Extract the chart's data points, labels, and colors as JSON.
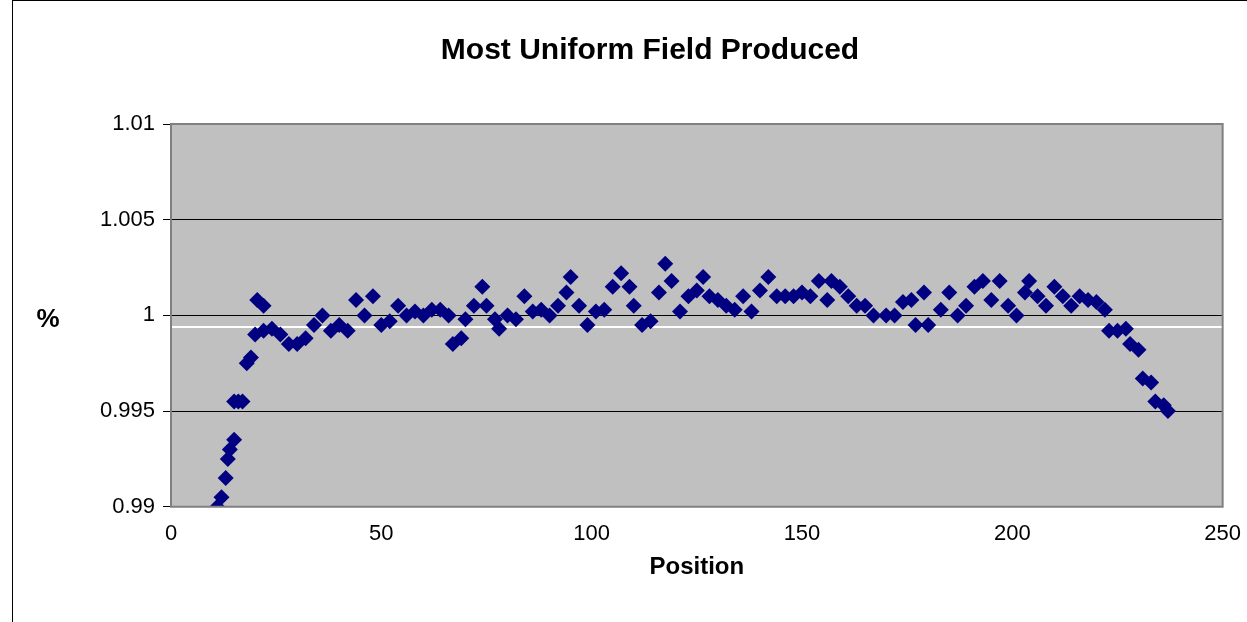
{
  "chart_data": {
    "type": "scatter",
    "title": "Most Uniform Field Produced",
    "xlabel": "Position",
    "ylabel": "%",
    "x": [
      11,
      12,
      13,
      13.5,
      14,
      15,
      15,
      16,
      17,
      18,
      19,
      20,
      20.5,
      22,
      22,
      24,
      26,
      28,
      30,
      32,
      34,
      36,
      38,
      40,
      42,
      44,
      46,
      48,
      50,
      52,
      54,
      56,
      58,
      60,
      62,
      64,
      66,
      67,
      69,
      70,
      72,
      74,
      75,
      77,
      78,
      80,
      82,
      84,
      86,
      88,
      90,
      92,
      94,
      95,
      97,
      99,
      101,
      103,
      105,
      107,
      109,
      110,
      112,
      114,
      116,
      117.5,
      119,
      121,
      123,
      125,
      126.5,
      128,
      130,
      132,
      134,
      136,
      138,
      140,
      142,
      144,
      146,
      148,
      150,
      152,
      154,
      156,
      157,
      159,
      161,
      163,
      165,
      167,
      170,
      172,
      174,
      176,
      177,
      179,
      180,
      183,
      185,
      187,
      189,
      191,
      193,
      195,
      197,
      199,
      201,
      203,
      204,
      206,
      208,
      210,
      212,
      214,
      216,
      218,
      220,
      222,
      223,
      225,
      227,
      228,
      230,
      231,
      233,
      234,
      236,
      237
    ],
    "series": [
      {
        "color": "#000080",
        "values": [
          0.99,
          0.9905,
          0.9915,
          0.9925,
          0.993,
          0.9935,
          0.9955,
          0.9955,
          0.9955,
          0.9975,
          0.9978,
          0.999,
          1.0008,
          1.0005,
          0.9992,
          0.9993,
          0.999,
          0.9985,
          0.9985,
          0.9988,
          0.9995,
          1.0,
          0.9992,
          0.9995,
          0.9992,
          1.0008,
          1.0,
          1.001,
          0.9995,
          0.9997,
          1.0005,
          1.0,
          1.0002,
          1.0,
          1.0003,
          1.0003,
          1.0,
          0.9985,
          0.9988,
          0.9998,
          1.0005,
          1.0015,
          1.0005,
          0.9998,
          0.9993,
          1.0,
          0.9998,
          1.001,
          1.0002,
          1.0003,
          1.0,
          1.0005,
          1.0012,
          1.002,
          1.0005,
          0.9995,
          1.0002,
          1.0003,
          1.0015,
          1.0022,
          1.0015,
          1.0005,
          0.9995,
          0.9997,
          1.0012,
          1.0027,
          1.0018,
          1.0002,
          1.001,
          1.0013,
          1.002,
          1.001,
          1.0008,
          1.0005,
          1.0003,
          1.001,
          1.0002,
          1.0013,
          1.002,
          1.001,
          1.001,
          1.001,
          1.0012,
          1.001,
          1.0018,
          1.0008,
          1.0018,
          1.0015,
          1.001,
          1.0005,
          1.0005,
          1.0,
          1.0,
          1.0,
          1.0007,
          1.0008,
          0.9995,
          1.0012,
          0.9995,
          1.0003,
          1.0012,
          1.0,
          1.0005,
          1.0015,
          1.0018,
          1.0008,
          1.0018,
          1.0005,
          1.0,
          1.0012,
          1.0018,
          1.001,
          1.0005,
          1.0015,
          1.001,
          1.0005,
          1.001,
          1.0008,
          1.0007,
          1.0003,
          0.9992,
          0.9992,
          0.9993,
          0.9985,
          0.9982,
          0.9967,
          0.9965,
          0.9955,
          0.9953,
          0.995
        ]
      }
    ],
    "xlim": [
      0,
      250
    ],
    "xticks": [
      0,
      50,
      100,
      150,
      200,
      250
    ],
    "ylim": [
      0.99,
      1.01
    ],
    "yticks": [
      0.99,
      0.995,
      1,
      1.005,
      1.01
    ],
    "ref_lines": [
      {
        "axis": "y",
        "value": 0.9994,
        "color": "#ffffff"
      }
    ],
    "grid": "y",
    "legend": false,
    "marker": "diamond"
  }
}
